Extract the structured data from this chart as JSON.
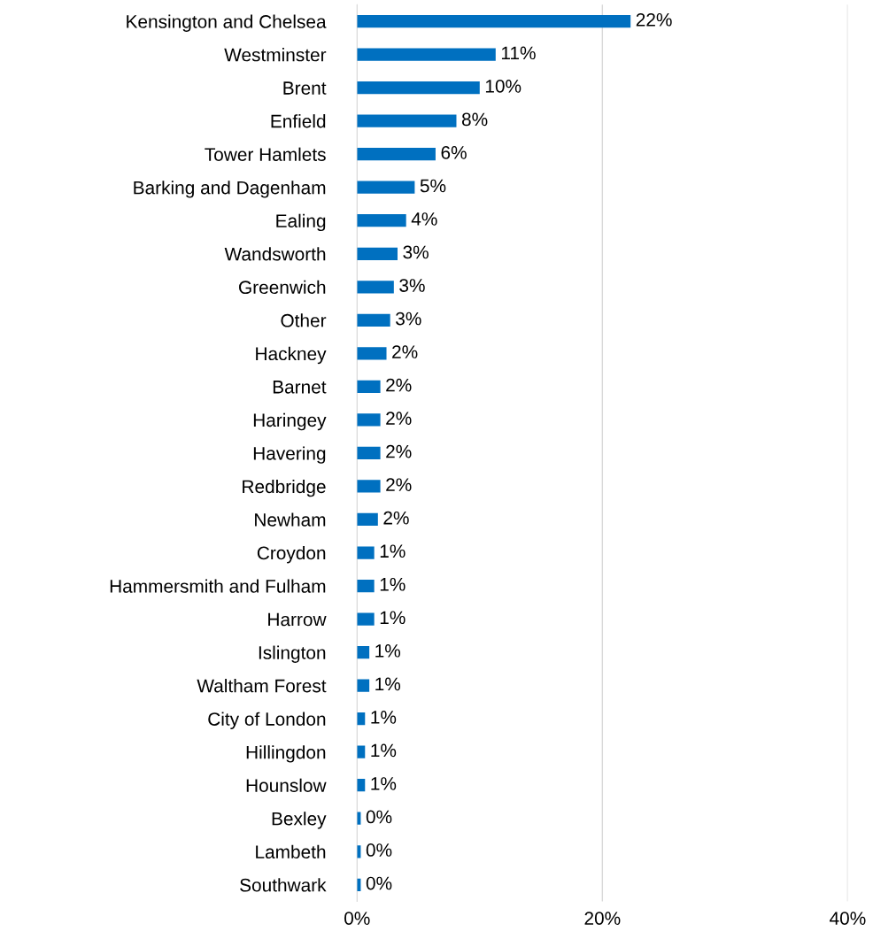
{
  "chart_data": {
    "type": "bar",
    "orientation": "horizontal",
    "categories": [
      "Kensington and Chelsea",
      "Westminster",
      "Brent",
      "Enfield",
      "Tower Hamlets",
      "Barking and Dagenham",
      "Ealing",
      "Wandsworth",
      "Greenwich",
      "Other",
      "Hackney",
      "Barnet",
      "Haringey",
      "Havering",
      "Redbridge",
      "Newham",
      "Croydon",
      "Hammersmith and Fulham",
      "Harrow",
      "Islington",
      "Waltham Forest",
      "City of London",
      "Hillingdon",
      "Hounslow",
      "Bexley",
      "Lambeth",
      "Southwark"
    ],
    "values": [
      22.3,
      11.3,
      10.0,
      8.1,
      6.4,
      4.7,
      4.0,
      3.3,
      3.0,
      2.7,
      2.4,
      1.9,
      1.9,
      1.9,
      1.9,
      1.7,
      1.4,
      1.4,
      1.4,
      1.0,
      1.0,
      0.65,
      0.65,
      0.65,
      0.3,
      0.3,
      0.3
    ],
    "value_labels": [
      "22%",
      "11%",
      "10%",
      "8%",
      "6%",
      "5%",
      "4%",
      "3%",
      "3%",
      "3%",
      "2%",
      "2%",
      "2%",
      "2%",
      "2%",
      "2%",
      "1%",
      "1%",
      "1%",
      "1%",
      "1%",
      "1%",
      "1%",
      "1%",
      "0%",
      "0%",
      "0%"
    ],
    "color": "#0070c0",
    "xlim": [
      0,
      40
    ],
    "xticks": [
      {
        "value": 0,
        "label": "0%"
      },
      {
        "value": 20,
        "label": "20%"
      },
      {
        "value": 40,
        "label": "40%"
      }
    ],
    "grid": "x",
    "legend": false
  }
}
